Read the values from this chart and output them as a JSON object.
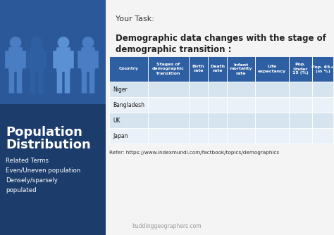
{
  "left_panel_bg": "#1c3d6b",
  "left_panel_top_bg": "#2b5899",
  "right_panel_bg": "#f4f4f4",
  "title_task": "Your Task:",
  "title_desc_line1": "Demographic data changes with the stage of",
  "title_desc_line2": "demographic transition :",
  "table_header_bg": "#2e5fa3",
  "table_header_color": "#ffffff",
  "table_row_odd": "#d6e4f0",
  "table_row_even": "#eaf1f8",
  "table_row_white": "#ffffff",
  "table_headers": [
    "Country",
    "Stages of\ndemographic\ntransition",
    "Birth\nrate",
    "Death\nrate",
    "Infant\nmortality\nrate",
    "Life\nexpectancy",
    "Pop.\nUnder\n15 (%)",
    "Pop. 65+\n(in %)"
  ],
  "table_rows": [
    "Niger",
    "Bangladesh",
    "UK",
    "Japan"
  ],
  "left_title_line1": "Population",
  "left_title_line2": "Distribution",
  "left_subtitle": "Related Terms\nEven/Uneven population\nDensely/sparsely\npopulated",
  "refer_text": "Refer: https://www.indexmundi.com/factbook/topics/demographics",
  "watermark": "buddinggeographers.com",
  "silhouette_dark": "#2e5fa3",
  "silhouette_mid": "#4a7ec4",
  "silhouette_light": "#5a90d4"
}
